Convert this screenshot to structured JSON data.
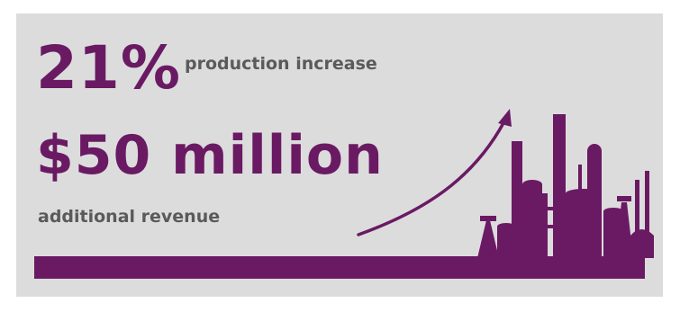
{
  "stats": {
    "percent_value": "21%",
    "percent_label": "production increase",
    "money_value": "$50 million",
    "money_label": "additional revenue"
  },
  "colors": {
    "accent": "#6a1a63",
    "background": "#dcdcdd",
    "label_text": "#5a5a5a"
  },
  "icons": {
    "arrow": "trend-up-arrow-icon",
    "skyline": "refinery-skyline-icon"
  }
}
